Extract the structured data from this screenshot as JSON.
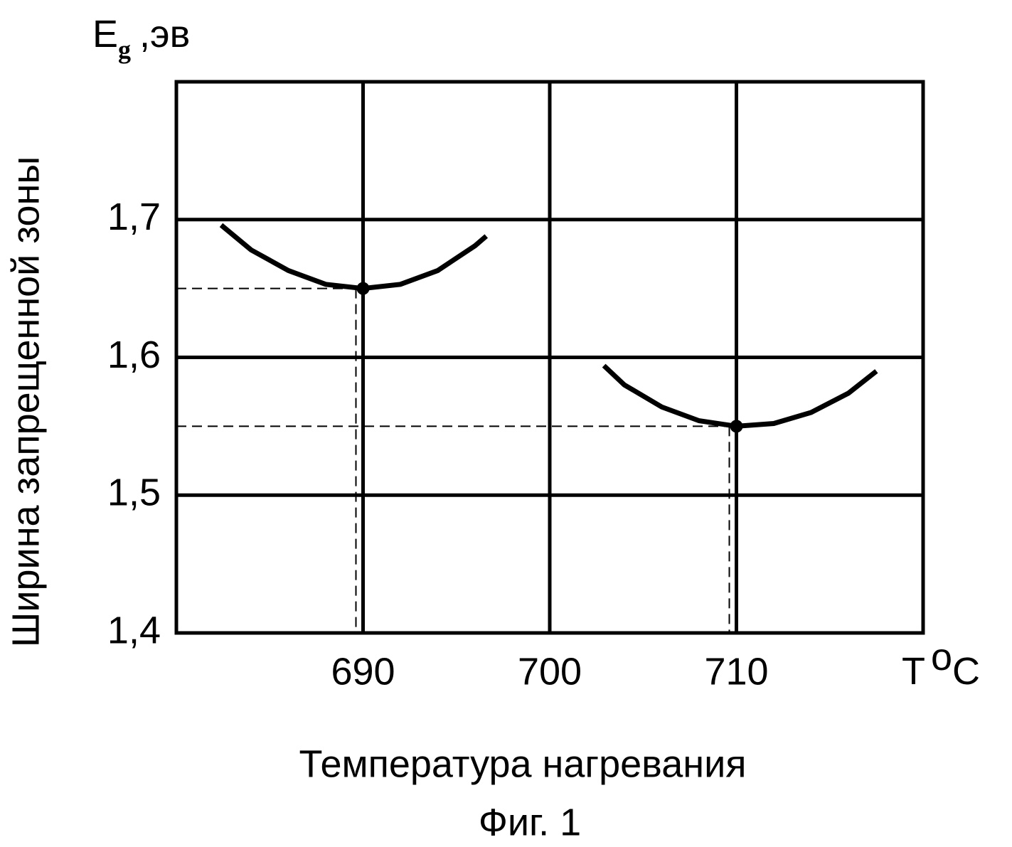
{
  "chart_data": {
    "type": "line",
    "caption": "Фиг. 1",
    "x_label": "Температура нагревания",
    "y_label": "Ширина запрещенной зоны",
    "y_unit": {
      "symbol": "E",
      "subscript": "g",
      "unit": ",эв"
    },
    "x_unit": {
      "symbol": "T",
      "superscript": "o",
      "unit": "C"
    },
    "xlim": [
      680,
      720
    ],
    "xticks": [
      690,
      700,
      710
    ],
    "ylim": [
      1.4,
      1.8
    ],
    "yticks": [
      {
        "value": 1.4,
        "label": "1,4"
      },
      {
        "value": 1.5,
        "label": "1,5"
      },
      {
        "value": 1.6,
        "label": "1,6"
      },
      {
        "value": 1.7,
        "label": "1,7"
      }
    ],
    "grid": true,
    "series": [
      {
        "color": "#000000",
        "x": [
          682.4,
          684,
          686,
          688,
          690,
          692,
          694,
          696,
          696.6
        ],
        "values": [
          1.696,
          1.678,
          1.663,
          1.653,
          1.65,
          1.653,
          1.663,
          1.681,
          1.688
        ]
      },
      {
        "color": "#000000",
        "x": [
          702.9,
          704,
          706,
          708,
          710,
          712,
          714,
          716,
          717.5
        ],
        "values": [
          1.594,
          1.58,
          1.564,
          1.554,
          1.55,
          1.552,
          1.56,
          1.574,
          1.59
        ]
      }
    ],
    "markers": [
      {
        "x": 690,
        "y": 1.65
      },
      {
        "x": 710,
        "y": 1.55
      }
    ]
  }
}
